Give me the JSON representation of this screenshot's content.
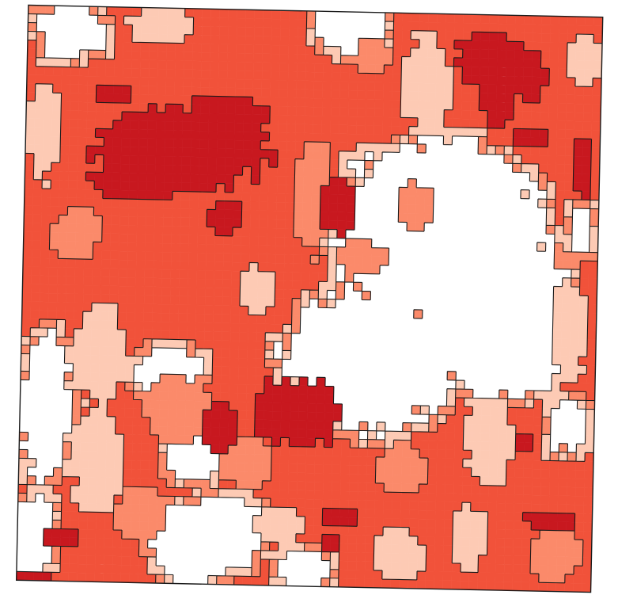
{
  "map": {
    "type": "choropleth-raster",
    "rotation_deg": 1.2,
    "classes": [
      {
        "id": "none",
        "color": "#ffffff"
      },
      {
        "id": "c1",
        "color": "#fdcab4"
      },
      {
        "id": "c2",
        "color": "#fb8a6a"
      },
      {
        "id": "c3",
        "color": "#f1523a"
      },
      {
        "id": "c4",
        "color": "#c8181f"
      }
    ],
    "legend": null
  }
}
